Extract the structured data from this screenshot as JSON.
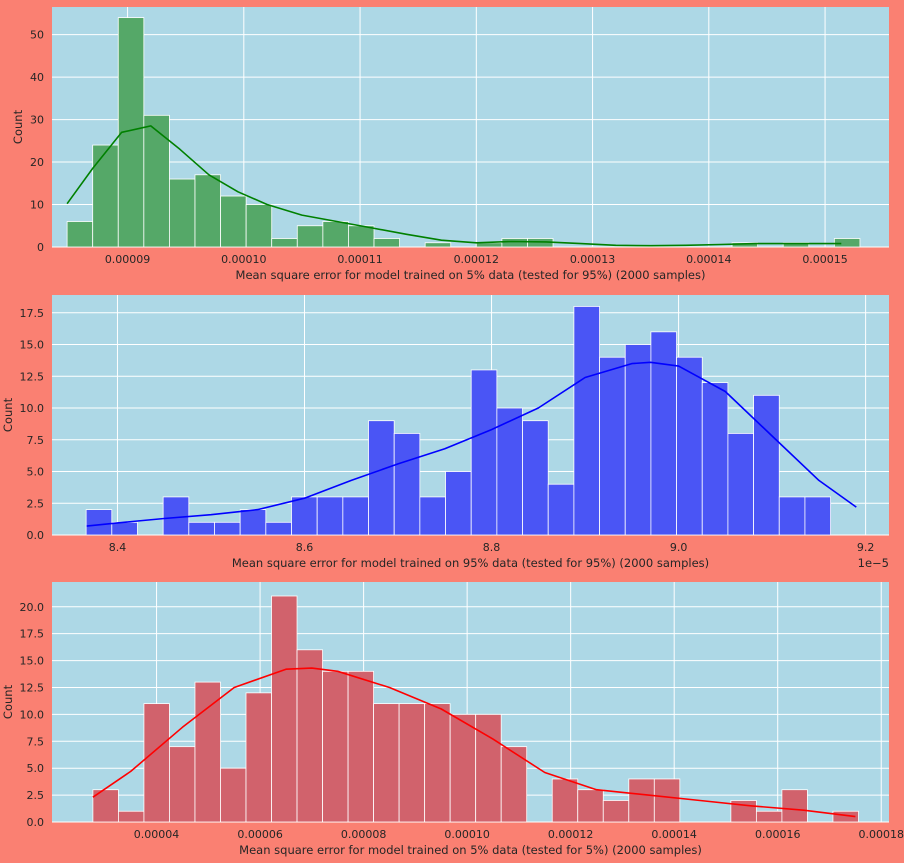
{
  "figure": {
    "background": "#fa8072",
    "plot_background": "#add8e6"
  },
  "chart_data": [
    {
      "type": "bar",
      "subtype": "histogram-with-kde",
      "xlabel": "Mean square error for model trained on 5% data (tested for 95%) (2000 samples)",
      "ylabel": "Count",
      "xlim": [
        8.35e-05,
        0.0001555
      ],
      "ylim": [
        0,
        56.5
      ],
      "x_ticks": [
        9e-05,
        0.0001,
        0.00011,
        0.00012,
        0.00013,
        0.00014,
        0.00015
      ],
      "x_tick_labels": [
        "0.00009",
        "0.00010",
        "0.00011",
        "0.00012",
        "0.00013",
        "0.00014",
        "0.00015"
      ],
      "y_ticks": [
        0,
        10,
        20,
        30,
        40,
        50
      ],
      "y_tick_labels": [
        "0",
        "10",
        "20",
        "30",
        "40",
        "50"
      ],
      "offset_label": "",
      "grid": true,
      "bar_color": "#55a868",
      "line_color": "#008000",
      "bin_start": 8.48e-05,
      "bin_width": 2.2e-06,
      "counts": [
        6,
        24,
        54,
        31,
        16,
        17,
        12,
        10,
        2,
        5,
        6,
        5,
        2,
        0,
        1,
        0,
        1,
        2,
        2,
        0,
        0,
        0,
        0,
        0,
        0,
        0,
        1,
        0,
        1,
        0,
        2
      ],
      "kde": {
        "x": [
          8.48e-05,
          8.7e-05,
          8.95e-05,
          9.2e-05,
          9.45e-05,
          9.7e-05,
          9.95e-05,
          0.000102,
          0.000105,
          0.000108,
          0.000111,
          0.000114,
          0.000117,
          0.00012,
          0.000123,
          0.000126,
          0.000129,
          0.000132,
          0.000135,
          0.000138,
          0.000141,
          0.000144,
          0.000147,
          0.00015,
          0.0001514
        ],
        "y": [
          10.2,
          18.5,
          27.0,
          28.5,
          23.0,
          17.0,
          13.0,
          10.0,
          7.5,
          6.0,
          4.5,
          3.0,
          1.6,
          1.0,
          1.3,
          1.2,
          0.8,
          0.4,
          0.3,
          0.4,
          0.6,
          0.8,
          0.8,
          0.8,
          0.8
        ]
      }
    },
    {
      "type": "bar",
      "subtype": "histogram-with-kde",
      "xlabel": "Mean square error for model trained on 95% data (tested for 95%) (2000 samples)",
      "ylabel": "Count",
      "xlim": [
        8.33,
        9.225
      ],
      "ylim": [
        0,
        18.9
      ],
      "x_ticks": [
        8.4,
        8.6,
        8.8,
        9.0,
        9.2
      ],
      "x_tick_labels": [
        "8.4",
        "8.6",
        "8.8",
        "9.0",
        "9.2"
      ],
      "y_ticks": [
        0,
        2.5,
        5.0,
        7.5,
        10.0,
        12.5,
        15.0,
        17.5
      ],
      "y_tick_labels": [
        "0.0",
        "2.5",
        "5.0",
        "7.5",
        "10.0",
        "12.5",
        "15.0",
        "17.5"
      ],
      "offset_label": "1e−5",
      "grid": true,
      "bar_color": "#4a55f5",
      "line_color": "#0000ff",
      "bin_start": 8.3665,
      "bin_width": 0.02745,
      "counts": [
        2,
        1,
        0,
        3,
        1,
        1,
        2,
        1,
        3,
        3,
        3,
        9,
        8,
        3,
        5,
        13,
        10,
        9,
        4,
        18,
        14,
        15,
        16,
        14,
        12,
        8,
        11,
        3,
        3
      ],
      "kde": {
        "x": [
          8.367,
          8.4,
          8.45,
          8.5,
          8.55,
          8.6,
          8.65,
          8.7,
          8.75,
          8.8,
          8.85,
          8.9,
          8.95,
          8.97,
          9.0,
          9.05,
          9.1,
          9.15,
          9.19
        ],
        "y": [
          0.7,
          0.95,
          1.3,
          1.6,
          2.0,
          2.9,
          4.3,
          5.6,
          6.8,
          8.3,
          10.0,
          12.4,
          13.5,
          13.6,
          13.3,
          11.3,
          7.8,
          4.3,
          2.2
        ]
      }
    },
    {
      "type": "bar",
      "subtype": "histogram-with-kde",
      "xlabel": "Mean square error for model trained on 5% data (tested for 5%) (2000 samples)",
      "ylabel": "Count",
      "xlim": [
        1.98e-05,
        0.0001815
      ],
      "ylim": [
        0,
        22.3
      ],
      "x_ticks": [
        4e-05,
        6e-05,
        8e-05,
        0.0001,
        0.00012,
        0.00014,
        0.00016,
        0.00018
      ],
      "x_tick_labels": [
        "0.00004",
        "0.00006",
        "0.00008",
        "0.00010",
        "0.00012",
        "0.00014",
        "0.00016",
        "0.00018"
      ],
      "y_ticks": [
        0,
        2.5,
        5.0,
        7.5,
        10.0,
        12.5,
        15.0,
        17.5,
        20.0
      ],
      "y_tick_labels": [
        "0.0",
        "2.5",
        "5.0",
        "7.5",
        "10.0",
        "12.5",
        "15.0",
        "17.5",
        "20.0"
      ],
      "offset_label": "",
      "grid": true,
      "bar_color": "#d1626c",
      "line_color": "#ff0000",
      "bin_start": 2.77e-05,
      "bin_width": 4.93e-06,
      "counts": [
        3,
        1,
        11,
        7,
        13,
        5,
        12,
        21,
        16,
        14,
        14,
        11,
        11,
        11,
        10,
        10,
        7,
        0,
        4,
        3,
        2,
        4,
        4,
        0,
        0,
        2,
        1,
        3,
        0,
        1
      ],
      "kde": {
        "x": [
          2.77e-05,
          3.5e-05,
          4.5e-05,
          5.5e-05,
          6.5e-05,
          7e-05,
          7.5e-05,
          8.5e-05,
          9.5e-05,
          0.000105,
          0.000115,
          0.000125,
          0.000135,
          0.000145,
          0.000155,
          0.000165,
          0.000175
        ],
        "y": [
          2.3,
          4.7,
          8.8,
          12.5,
          14.2,
          14.3,
          14.0,
          12.5,
          10.5,
          7.7,
          4.6,
          3.0,
          2.5,
          2.0,
          1.5,
          1.1,
          0.5
        ]
      }
    }
  ]
}
